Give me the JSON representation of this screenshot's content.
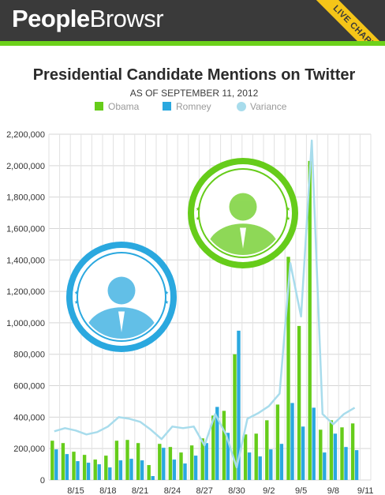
{
  "header": {
    "brand_bold": "People",
    "brand_light": "Browsr",
    "ribbon": "LIVE CHART"
  },
  "colors": {
    "header_bg": "#3a3a3a",
    "accent_green": "#6cd11a",
    "ribbon_yellow": "#f5c518",
    "obama": "#66cc1a",
    "romney": "#2aa8df",
    "variance": "#a8dcec"
  },
  "badges": [
    {
      "name": "obama-badge",
      "color": "#66cc1a"
    },
    {
      "name": "romney-badge",
      "color": "#2aa8df"
    }
  ],
  "chart_data": {
    "type": "bar",
    "title": "Presidential Candidate Mentions on Twitter",
    "subtitle": "AS OF SEPTEMBER 11, 2012",
    "legend_position": "top",
    "grid": true,
    "ylim": [
      0,
      2200000
    ],
    "y_ticks": [
      "0",
      "200,000",
      "400,000",
      "600,000",
      "800,000",
      "1,000,000",
      "1,200,000",
      "1,400,000",
      "1,600,000",
      "1,800,000",
      "2,000,000",
      "2,200,000"
    ],
    "x_tick_labels": [
      "8/15",
      "8/18",
      "8/21",
      "8/24",
      "8/27",
      "8/30",
      "9/2",
      "9/5",
      "9/8",
      "9/11"
    ],
    "categories": [
      "8/13",
      "8/14",
      "8/15",
      "8/16",
      "8/17",
      "8/18",
      "8/19",
      "8/20",
      "8/21",
      "8/22",
      "8/23",
      "8/24",
      "8/25",
      "8/26",
      "8/27",
      "8/28",
      "8/29",
      "8/30",
      "8/31",
      "9/1",
      "9/2",
      "9/3",
      "9/4",
      "9/5",
      "9/6",
      "9/7",
      "9/8",
      "9/9",
      "9/10",
      "9/11"
    ],
    "series": [
      {
        "name": "Obama",
        "type": "bar",
        "values": [
          250000,
          235000,
          180000,
          160000,
          130000,
          155000,
          250000,
          255000,
          235000,
          95000,
          230000,
          210000,
          175000,
          220000,
          265000,
          410000,
          440000,
          800000,
          290000,
          295000,
          380000,
          480000,
          1420000,
          980000,
          2030000,
          320000,
          380000,
          335000,
          360000,
          0
        ]
      },
      {
        "name": "Romney",
        "type": "bar",
        "values": [
          195000,
          165000,
          120000,
          110000,
          100000,
          80000,
          125000,
          135000,
          125000,
          25000,
          205000,
          130000,
          105000,
          155000,
          235000,
          465000,
          300000,
          950000,
          175000,
          150000,
          195000,
          230000,
          490000,
          340000,
          460000,
          175000,
          295000,
          210000,
          190000,
          0
        ]
      },
      {
        "name": "Variance",
        "type": "line",
        "values": [
          310000,
          330000,
          315000,
          290000,
          305000,
          340000,
          400000,
          390000,
          370000,
          320000,
          260000,
          340000,
          330000,
          340000,
          220000,
          420000,
          290000,
          80000,
          390000,
          425000,
          470000,
          550000,
          1380000,
          1040000,
          2160000,
          420000,
          355000,
          420000,
          460000,
          null
        ]
      }
    ]
  }
}
